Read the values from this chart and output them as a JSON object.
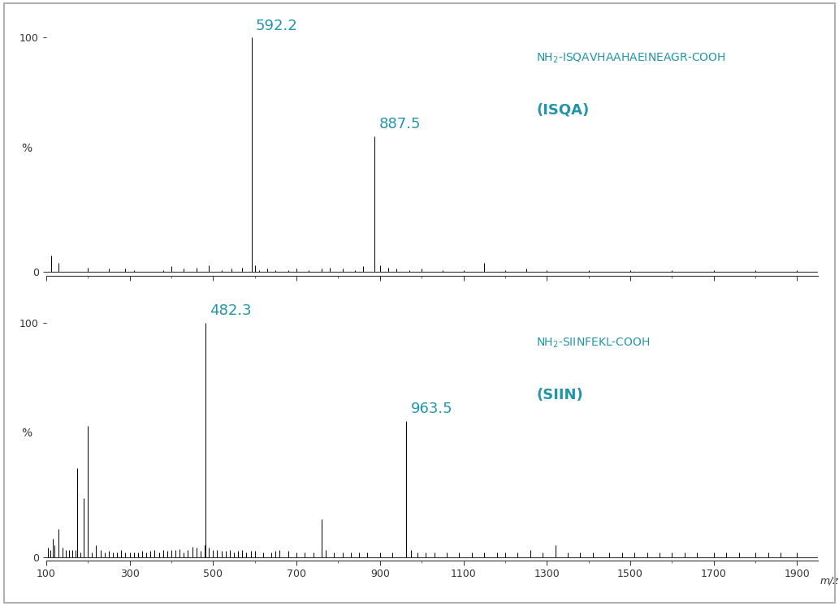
{
  "background_color": "#ffffff",
  "border_color": "#b0b0b0",
  "label_color": "#2196a8",
  "text_color": "#2196a8",
  "axis_color": "#333333",
  "xmin": 100,
  "xmax": 1950,
  "xticks": [
    100,
    300,
    500,
    700,
    900,
    1100,
    1300,
    1500,
    1700,
    1900
  ],
  "xlabel": "m/z",
  "spectrum1": {
    "title_line1": "NH$_2$-ISQAVHAAHAEINEAGR-COOH",
    "title_line2": "(ISQA)",
    "ylabel": "%",
    "peaks": [
      {
        "mz": 113,
        "intensity": 7
      },
      {
        "mz": 130,
        "intensity": 4
      },
      {
        "mz": 200,
        "intensity": 2
      },
      {
        "mz": 250,
        "intensity": 1.5
      },
      {
        "mz": 290,
        "intensity": 1.5
      },
      {
        "mz": 310,
        "intensity": 1
      },
      {
        "mz": 380,
        "intensity": 1
      },
      {
        "mz": 400,
        "intensity": 2.5
      },
      {
        "mz": 430,
        "intensity": 1.5
      },
      {
        "mz": 460,
        "intensity": 2
      },
      {
        "mz": 490,
        "intensity": 3
      },
      {
        "mz": 520,
        "intensity": 1
      },
      {
        "mz": 545,
        "intensity": 1.5
      },
      {
        "mz": 570,
        "intensity": 2
      },
      {
        "mz": 592.2,
        "intensity": 100
      },
      {
        "mz": 600,
        "intensity": 3
      },
      {
        "mz": 610,
        "intensity": 1
      },
      {
        "mz": 630,
        "intensity": 1.5
      },
      {
        "mz": 650,
        "intensity": 1
      },
      {
        "mz": 680,
        "intensity": 1
      },
      {
        "mz": 700,
        "intensity": 1.5
      },
      {
        "mz": 730,
        "intensity": 1
      },
      {
        "mz": 760,
        "intensity": 1.5
      },
      {
        "mz": 780,
        "intensity": 2
      },
      {
        "mz": 810,
        "intensity": 1.5
      },
      {
        "mz": 840,
        "intensity": 1
      },
      {
        "mz": 860,
        "intensity": 2.5
      },
      {
        "mz": 887.5,
        "intensity": 58
      },
      {
        "mz": 900,
        "intensity": 3
      },
      {
        "mz": 920,
        "intensity": 2
      },
      {
        "mz": 940,
        "intensity": 1.5
      },
      {
        "mz": 970,
        "intensity": 1
      },
      {
        "mz": 1000,
        "intensity": 1.5
      },
      {
        "mz": 1050,
        "intensity": 1
      },
      {
        "mz": 1100,
        "intensity": 1
      },
      {
        "mz": 1150,
        "intensity": 4
      },
      {
        "mz": 1200,
        "intensity": 1
      },
      {
        "mz": 1250,
        "intensity": 1.5
      },
      {
        "mz": 1300,
        "intensity": 1
      },
      {
        "mz": 1400,
        "intensity": 1
      },
      {
        "mz": 1500,
        "intensity": 1
      },
      {
        "mz": 1600,
        "intensity": 1
      },
      {
        "mz": 1700,
        "intensity": 1
      },
      {
        "mz": 1800,
        "intensity": 1
      },
      {
        "mz": 1900,
        "intensity": 1
      }
    ],
    "labeled_peaks": [
      {
        "mz": 592.2,
        "label": "592.2"
      },
      {
        "mz": 887.5,
        "label": "887.5"
      }
    ]
  },
  "spectrum2": {
    "title_line1": "NH$_2$-SIINFEKL-COOH",
    "title_line2": "(SIIN)",
    "ylabel": "%",
    "peaks": [
      {
        "mz": 105,
        "intensity": 4
      },
      {
        "mz": 110,
        "intensity": 3
      },
      {
        "mz": 115,
        "intensity": 8
      },
      {
        "mz": 120,
        "intensity": 5
      },
      {
        "mz": 130,
        "intensity": 12
      },
      {
        "mz": 140,
        "intensity": 4
      },
      {
        "mz": 147,
        "intensity": 3
      },
      {
        "mz": 155,
        "intensity": 3
      },
      {
        "mz": 163,
        "intensity": 3
      },
      {
        "mz": 170,
        "intensity": 3
      },
      {
        "mz": 175,
        "intensity": 38
      },
      {
        "mz": 182,
        "intensity": 2
      },
      {
        "mz": 190,
        "intensity": 25
      },
      {
        "mz": 200,
        "intensity": 56
      },
      {
        "mz": 210,
        "intensity": 2
      },
      {
        "mz": 220,
        "intensity": 5
      },
      {
        "mz": 230,
        "intensity": 3
      },
      {
        "mz": 240,
        "intensity": 2
      },
      {
        "mz": 250,
        "intensity": 2.5
      },
      {
        "mz": 260,
        "intensity": 2
      },
      {
        "mz": 270,
        "intensity": 2
      },
      {
        "mz": 280,
        "intensity": 3
      },
      {
        "mz": 290,
        "intensity": 2
      },
      {
        "mz": 300,
        "intensity": 2
      },
      {
        "mz": 310,
        "intensity": 2
      },
      {
        "mz": 320,
        "intensity": 2
      },
      {
        "mz": 330,
        "intensity": 2.5
      },
      {
        "mz": 340,
        "intensity": 2
      },
      {
        "mz": 350,
        "intensity": 2.5
      },
      {
        "mz": 360,
        "intensity": 3
      },
      {
        "mz": 370,
        "intensity": 2
      },
      {
        "mz": 380,
        "intensity": 3
      },
      {
        "mz": 390,
        "intensity": 2.5
      },
      {
        "mz": 400,
        "intensity": 3
      },
      {
        "mz": 410,
        "intensity": 3
      },
      {
        "mz": 420,
        "intensity": 3.5
      },
      {
        "mz": 430,
        "intensity": 2
      },
      {
        "mz": 440,
        "intensity": 3
      },
      {
        "mz": 450,
        "intensity": 4.5
      },
      {
        "mz": 460,
        "intensity": 4
      },
      {
        "mz": 470,
        "intensity": 2.5
      },
      {
        "mz": 480,
        "intensity": 5
      },
      {
        "mz": 482.3,
        "intensity": 100
      },
      {
        "mz": 490,
        "intensity": 4
      },
      {
        "mz": 500,
        "intensity": 3
      },
      {
        "mz": 510,
        "intensity": 3
      },
      {
        "mz": 520,
        "intensity": 2.5
      },
      {
        "mz": 530,
        "intensity": 2.5
      },
      {
        "mz": 540,
        "intensity": 3
      },
      {
        "mz": 550,
        "intensity": 2
      },
      {
        "mz": 560,
        "intensity": 2.5
      },
      {
        "mz": 570,
        "intensity": 3
      },
      {
        "mz": 580,
        "intensity": 2
      },
      {
        "mz": 590,
        "intensity": 2.5
      },
      {
        "mz": 600,
        "intensity": 2.5
      },
      {
        "mz": 620,
        "intensity": 2
      },
      {
        "mz": 640,
        "intensity": 2
      },
      {
        "mz": 650,
        "intensity": 2.5
      },
      {
        "mz": 660,
        "intensity": 3
      },
      {
        "mz": 680,
        "intensity": 2.5
      },
      {
        "mz": 700,
        "intensity": 2
      },
      {
        "mz": 720,
        "intensity": 2
      },
      {
        "mz": 740,
        "intensity": 2
      },
      {
        "mz": 760,
        "intensity": 16
      },
      {
        "mz": 770,
        "intensity": 3
      },
      {
        "mz": 790,
        "intensity": 2
      },
      {
        "mz": 810,
        "intensity": 2
      },
      {
        "mz": 830,
        "intensity": 2
      },
      {
        "mz": 850,
        "intensity": 2
      },
      {
        "mz": 870,
        "intensity": 2
      },
      {
        "mz": 900,
        "intensity": 2
      },
      {
        "mz": 930,
        "intensity": 2
      },
      {
        "mz": 963.5,
        "intensity": 58
      },
      {
        "mz": 975,
        "intensity": 3
      },
      {
        "mz": 990,
        "intensity": 2
      },
      {
        "mz": 1010,
        "intensity": 2
      },
      {
        "mz": 1030,
        "intensity": 2
      },
      {
        "mz": 1060,
        "intensity": 2
      },
      {
        "mz": 1090,
        "intensity": 2
      },
      {
        "mz": 1120,
        "intensity": 2
      },
      {
        "mz": 1150,
        "intensity": 2
      },
      {
        "mz": 1180,
        "intensity": 2
      },
      {
        "mz": 1200,
        "intensity": 2
      },
      {
        "mz": 1230,
        "intensity": 2
      },
      {
        "mz": 1260,
        "intensity": 3
      },
      {
        "mz": 1290,
        "intensity": 2
      },
      {
        "mz": 1320,
        "intensity": 5
      },
      {
        "mz": 1350,
        "intensity": 2
      },
      {
        "mz": 1380,
        "intensity": 2
      },
      {
        "mz": 1410,
        "intensity": 2
      },
      {
        "mz": 1450,
        "intensity": 2
      },
      {
        "mz": 1480,
        "intensity": 2
      },
      {
        "mz": 1510,
        "intensity": 2
      },
      {
        "mz": 1540,
        "intensity": 2
      },
      {
        "mz": 1570,
        "intensity": 2
      },
      {
        "mz": 1600,
        "intensity": 2
      },
      {
        "mz": 1630,
        "intensity": 2
      },
      {
        "mz": 1660,
        "intensity": 2
      },
      {
        "mz": 1700,
        "intensity": 2
      },
      {
        "mz": 1730,
        "intensity": 2
      },
      {
        "mz": 1760,
        "intensity": 2
      },
      {
        "mz": 1800,
        "intensity": 2
      },
      {
        "mz": 1830,
        "intensity": 2
      },
      {
        "mz": 1860,
        "intensity": 2
      },
      {
        "mz": 1900,
        "intensity": 2
      }
    ],
    "labeled_peaks": [
      {
        "mz": 482.3,
        "label": "482.3"
      },
      {
        "mz": 963.5,
        "label": "963.5"
      }
    ]
  }
}
